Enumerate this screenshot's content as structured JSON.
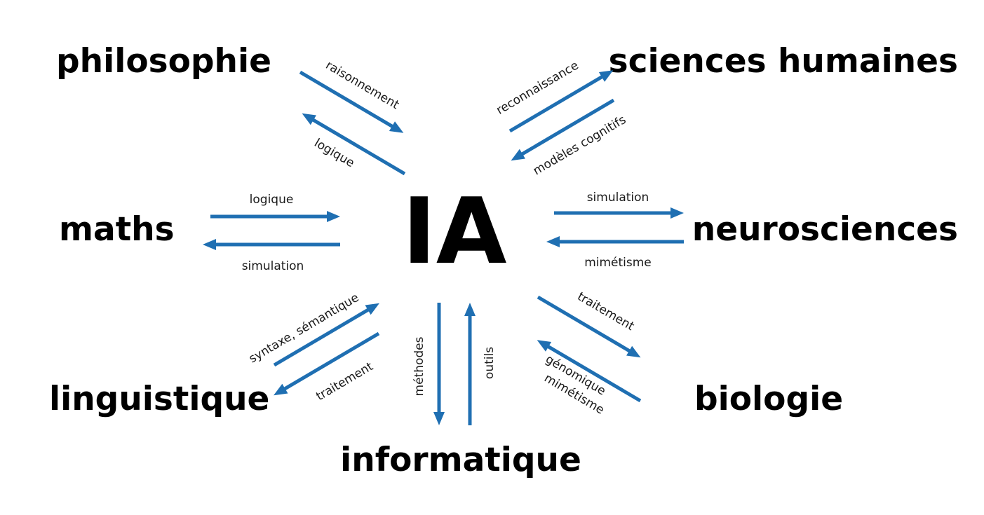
{
  "center": "IA",
  "nodes": {
    "philosophie": "philosophie",
    "sciences_humaines": "sciences humaines",
    "maths": "maths",
    "neurosciences": "neurosciences",
    "linguistique": "linguistique",
    "biologie": "biologie",
    "informatique": "informatique"
  },
  "edges": {
    "raisonnement": "raisonnement",
    "logique_philo": "logique",
    "reconnaissance": "reconnaissance",
    "modeles_cognitifs": "modèles cognitifs",
    "logique_maths": "logique",
    "simulation_maths": "simulation",
    "simulation_neuro": "simulation",
    "mimetisme_neuro": "mimétisme",
    "syntaxe_semantique": "syntaxe, sémantique",
    "traitement_ling": "traitement",
    "methodes": "méthodes",
    "outils": "outils",
    "traitement_bio": "traitement",
    "genomique": "génomique",
    "mimetisme_bio": "mimétisme"
  },
  "colors": {
    "arrow": "#1f6fb2",
    "text": "#000000"
  }
}
